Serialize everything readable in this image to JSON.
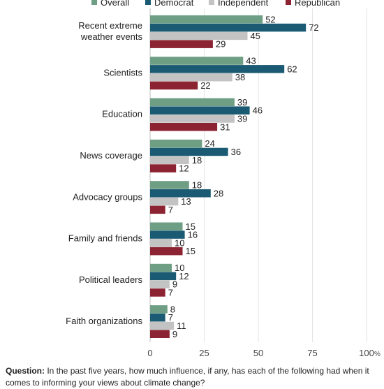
{
  "chart_data": {
    "type": "bar",
    "orientation": "horizontal",
    "categories": [
      "Recent extreme weather events",
      "Scientists",
      "Education",
      "News coverage",
      "Advocacy groups",
      "Family and friends",
      "Political leaders",
      "Faith organizations"
    ],
    "category_lines": [
      [
        "Recent extreme",
        "weather events"
      ],
      [
        "Scientists"
      ],
      [
        "Education"
      ],
      [
        "News coverage"
      ],
      [
        "Advocacy groups"
      ],
      [
        "Family and friends"
      ],
      [
        "Political leaders"
      ],
      [
        "Faith organizations"
      ]
    ],
    "series": [
      {
        "name": "Overall",
        "color": "#6e9e84",
        "values": [
          52,
          43,
          39,
          24,
          18,
          15,
          10,
          8
        ]
      },
      {
        "name": "Democrat",
        "color": "#1b5a73",
        "values": [
          72,
          62,
          46,
          36,
          28,
          16,
          12,
          7
        ]
      },
      {
        "name": "Independent",
        "color": "#c3c3c3",
        "values": [
          45,
          38,
          39,
          18,
          13,
          10,
          9,
          11
        ]
      },
      {
        "name": "Republican",
        "color": "#8b2332",
        "values": [
          29,
          22,
          31,
          12,
          7,
          15,
          7,
          9
        ]
      }
    ],
    "xlim": [
      0,
      100
    ],
    "x_ticks": [
      "0",
      "25",
      "50",
      "75",
      "100"
    ],
    "x_unit": "%",
    "legend": "top",
    "grid": true
  },
  "footnote": {
    "label": "Question:",
    "text": " In the past five years, how much influence, if any, has each of the following had when it comes to informing your views about climate change?"
  }
}
